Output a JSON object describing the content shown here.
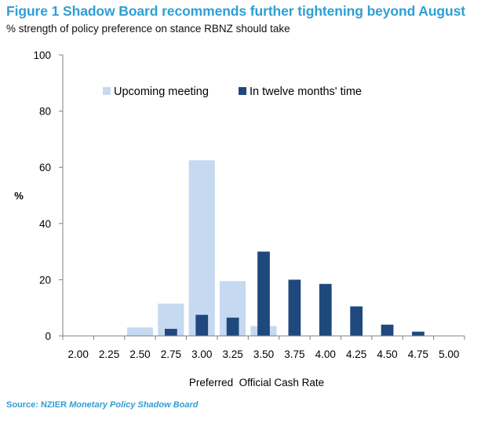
{
  "title": "Figure 1 Shadow Board recommends further tightening beyond August",
  "subtitle": "% strength of policy preference on stance RBNZ should take",
  "source": {
    "label": "Source: NZIER",
    "publication": "Monetary Policy Shadow Board"
  },
  "colors": {
    "title": "#2e9fd4",
    "upcoming": "#c5d9f1",
    "twelve_months": "#1f497d"
  },
  "chart_data": {
    "type": "bar",
    "title": "",
    "xlabel": "Preferred  Official Cash Rate",
    "ylabel": "%",
    "ylim": [
      0,
      100
    ],
    "yticks": [
      0,
      20,
      40,
      60,
      80,
      100
    ],
    "grid": false,
    "legend_position": "top",
    "categories": [
      "2.00",
      "2.25",
      "2.50",
      "2.75",
      "3.00",
      "3.25",
      "3.50",
      "3.75",
      "4.00",
      "4.25",
      "4.50",
      "4.75",
      "5.00"
    ],
    "series": [
      {
        "name": "Upcoming meeting",
        "color": "#c5d9f1",
        "values": [
          0,
          0,
          3,
          11.5,
          62.5,
          19.5,
          3.5,
          0,
          0,
          0,
          0,
          0,
          0
        ]
      },
      {
        "name": "In twelve months' time",
        "color": "#1f497d",
        "values": [
          0,
          0,
          0,
          2.5,
          7.5,
          6.5,
          30,
          20,
          18.5,
          10.5,
          4,
          1.5,
          0
        ]
      }
    ]
  }
}
